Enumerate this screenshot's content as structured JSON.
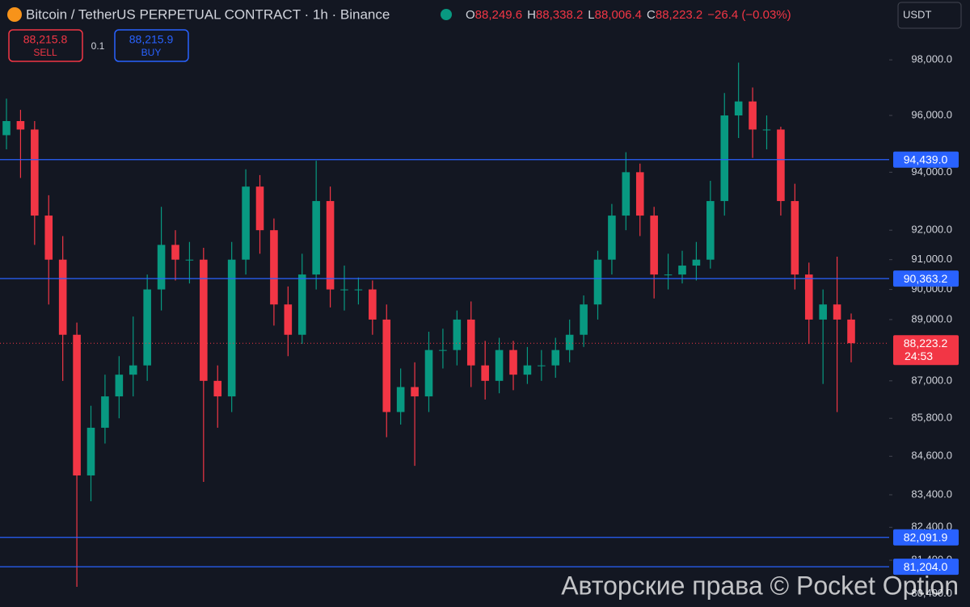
{
  "chart_data": {
    "type": "candlestick",
    "title": "Bitcoin / TetherUS PERPETUAL CONTRACT · 1h · Binance",
    "legend_fields": [
      {
        "key": "O",
        "value": 88249.6,
        "label": "88,249.6"
      },
      {
        "key": "H",
        "value": 88338.2,
        "label": "88,338.2"
      },
      {
        "key": "L",
        "value": 88006.4,
        "label": "88,006.4"
      },
      {
        "key": "C",
        "value": 88223.2,
        "label": "88,223.2"
      }
    ],
    "change": "−26.4 (−0.03%)",
    "trade_panel": {
      "sell": {
        "price": "88,215.8",
        "action": "SELL"
      },
      "quantity": "0.1",
      "buy": {
        "price": "88,215.9",
        "action": "BUY"
      }
    },
    "currency": "USDT",
    "watermark": "Авторские права © Pocket Option",
    "log_scale": true,
    "grid": false,
    "up_color": "#089981",
    "down_color": "#f23645",
    "level_color": "#2962ff",
    "ylim": [
      80000,
      100200
    ],
    "yticks": [
      {
        "value": 98000,
        "label": "98,000.0"
      },
      {
        "value": 96000,
        "label": "96,000.0"
      },
      {
        "value": 94000,
        "label": "94,000.0"
      },
      {
        "value": 92000,
        "label": "92,000.0"
      },
      {
        "value": 91000,
        "label": "91,000.0"
      },
      {
        "value": 90000,
        "label": "90,000.0"
      },
      {
        "value": 89000,
        "label": "89,000.0"
      },
      {
        "value": 87000,
        "label": "87,000.0"
      },
      {
        "value": 85800,
        "label": "85,800.0"
      },
      {
        "value": 84600,
        "label": "84,600.0"
      },
      {
        "value": 83400,
        "label": "83,400.0"
      },
      {
        "value": 82400,
        "label": "82,400.0"
      },
      {
        "value": 81400,
        "label": "81,400.0"
      },
      {
        "value": 80400,
        "label": "80,400.0"
      }
    ],
    "levels": [
      {
        "value": 94439,
        "label": "94,439.0"
      },
      {
        "value": 90363.2,
        "label": "90,363.2"
      },
      {
        "value": 82091.9,
        "label": "82,091.9"
      },
      {
        "value": 81204,
        "label": "81,204.0"
      }
    ],
    "last_price": {
      "value": 88223.2,
      "label": "88,223.2"
    },
    "countdown": "24:53",
    "open": [
      95300,
      95800,
      95500,
      92500,
      91000,
      88500,
      84000,
      85500,
      86500,
      87200,
      87500,
      90000,
      91500,
      91000,
      91000,
      87000,
      86500,
      91000,
      93500,
      92000,
      89500,
      88500,
      90500,
      93000,
      90000,
      90000,
      90000,
      89000,
      86000,
      86800,
      86500,
      88000,
      88000,
      89000,
      87500,
      87000,
      88000,
      87200,
      87500,
      87500,
      88000,
      88500,
      89500,
      91000,
      92500,
      94000,
      92500,
      90500,
      90500,
      90800,
      91000,
      93000,
      96000,
      96500,
      95500,
      95500,
      93000,
      90500,
      89000,
      89500,
      89000
    ],
    "high": [
      96600,
      96200,
      95800,
      93200,
      91800,
      88900,
      86200,
      87200,
      87800,
      89100,
      90500,
      92800,
      92000,
      91600,
      91400,
      87500,
      91600,
      94100,
      93900,
      92400,
      90100,
      91200,
      94400,
      93500,
      90800,
      90400,
      90300,
      89500,
      87400,
      87600,
      88600,
      88700,
      89300,
      89600,
      88300,
      88400,
      88300,
      88100,
      88000,
      88400,
      89000,
      89800,
      91300,
      92900,
      94700,
      94300,
      92800,
      91200,
      91300,
      91600,
      93700,
      96800,
      97900,
      97000,
      96000,
      95600,
      93600,
      90900,
      90000,
      91100,
      89200
    ],
    "low": [
      94800,
      93800,
      91500,
      89500,
      87000,
      80600,
      83200,
      85000,
      85800,
      86500,
      87000,
      89300,
      90300,
      90200,
      83800,
      85500,
      86000,
      90500,
      91200,
      88800,
      87800,
      88200,
      90000,
      89400,
      89300,
      89500,
      88500,
      85200,
      85600,
      84300,
      86000,
      87400,
      87500,
      86800,
      86400,
      86600,
      86700,
      86900,
      87000,
      87100,
      87600,
      88100,
      89000,
      90500,
      92000,
      91800,
      89700,
      90000,
      90200,
      90300,
      90700,
      92500,
      95200,
      94500,
      94800,
      92500,
      90000,
      88200,
      86900,
      86000,
      87600
    ],
    "close": [
      95800,
      95500,
      92500,
      91000,
      88500,
      84000,
      85500,
      86500,
      87200,
      87500,
      90000,
      91500,
      91000,
      91000,
      87000,
      86500,
      91000,
      93500,
      92000,
      89500,
      88500,
      90500,
      93000,
      90000,
      90000,
      90000,
      89000,
      86000,
      86800,
      86500,
      88000,
      88000,
      89000,
      87500,
      87000,
      88000,
      87200,
      87500,
      87500,
      88000,
      88500,
      89500,
      91000,
      92500,
      94000,
      92500,
      90500,
      90500,
      90800,
      91000,
      93000,
      96000,
      96500,
      95500,
      95500,
      93000,
      90500,
      89000,
      89500,
      89000,
      88223.2
    ]
  }
}
